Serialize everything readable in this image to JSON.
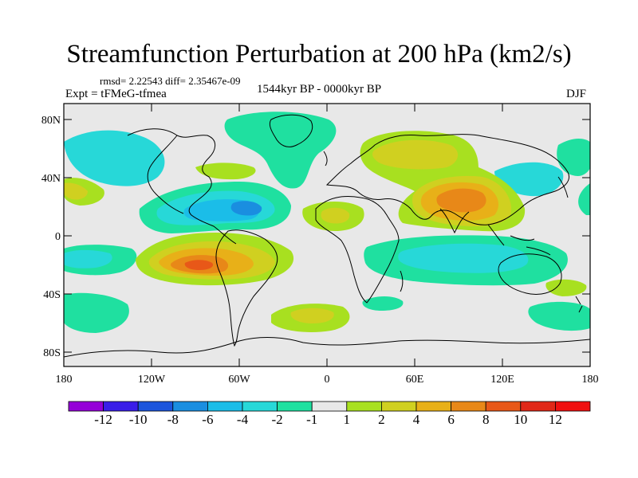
{
  "title": "Streamfunction Perturbation at 200 hPa (km2/s)",
  "subtitle_stats": "rmsd= 2.22543  diff= 2.35467e-09",
  "experiment": "Expt = tFMeG-tfmea",
  "period": "1544kyr BP - 0000kyr BP",
  "season": "DJF",
  "map": {
    "background": "#e8e8e8",
    "lat_ticks": [
      "80N",
      "40N",
      "0",
      "40S",
      "80S"
    ],
    "lon_ticks": [
      "180",
      "120W",
      "60W",
      "0",
      "60E",
      "120E",
      "180"
    ]
  },
  "colorbar": {
    "labels": [
      "-12",
      "-10",
      "-8",
      "-6",
      "-4",
      "-2",
      "-1",
      "1",
      "2",
      "4",
      "6",
      "8",
      "10",
      "12"
    ],
    "colors": [
      "#9500d8",
      "#3a1ee8",
      "#1c55dc",
      "#1a8ee0",
      "#1bbde8",
      "#27d8d8",
      "#1fe0a0",
      "#e8e8e8",
      "#a8e020",
      "#d0d020",
      "#e8b018",
      "#e88818",
      "#e85818",
      "#e02818",
      "#f01010"
    ]
  },
  "anomaly_regions": [
    {
      "name": "south-america-positive",
      "value": 10,
      "color": "#e85818"
    },
    {
      "name": "south-asia-positive",
      "value": 8,
      "color": "#e88818"
    },
    {
      "name": "north-africa-europe-positive",
      "value": 4,
      "color": "#d0d020"
    },
    {
      "name": "caribbean-negative",
      "value": -6,
      "color": "#1a8ee0"
    },
    {
      "name": "indian-ocean-negative",
      "value": -2,
      "color": "#27d8d8"
    },
    {
      "name": "north-pacific-negative",
      "value": -2,
      "color": "#27d8d8"
    }
  ]
}
